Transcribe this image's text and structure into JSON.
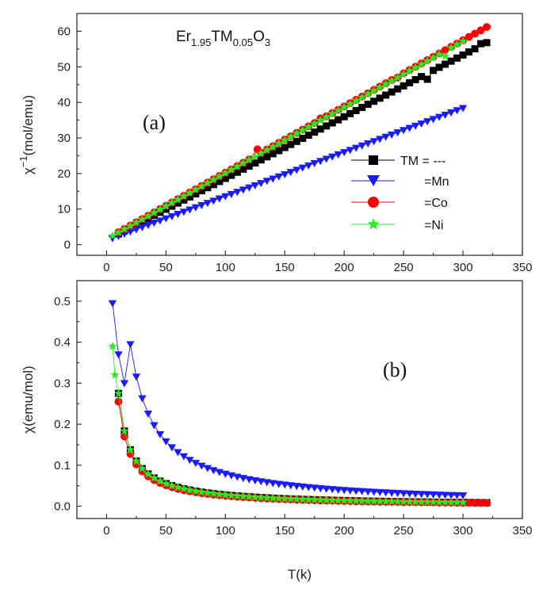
{
  "figure": {
    "compound": {
      "base": "Er",
      "sub1": "1.95",
      "mid": "TM",
      "sub2": "0.05",
      "end": "O",
      "sub3": "3"
    }
  },
  "colors": {
    "none": "#000000",
    "mn": "#1a1aff",
    "co": "#ff0000",
    "ni": "#22ee22"
  },
  "chart_data": [
    {
      "type": "scatter",
      "panel_label": "(a)",
      "xlabel": "",
      "ylabel": "χ−1(mol/emu)",
      "ylabel_parts": {
        "base": "χ",
        "sup": "−1",
        "rest": "(mol/emu)"
      },
      "xlim": [
        -25,
        350
      ],
      "ylim": [
        -3,
        65
      ],
      "x_ticks": [
        0,
        50,
        100,
        150,
        200,
        250,
        300,
        350
      ],
      "y_ticks": [
        0,
        10,
        20,
        30,
        40,
        50,
        60
      ],
      "legend_placement": "right",
      "grid": false,
      "series": [
        {
          "name": "TM = ---",
          "marker": "square",
          "color": "#000000",
          "x_start": 10,
          "x_end": 320,
          "x_step": 5,
          "y_at_start": 3.0,
          "y_at_end": 56.8,
          "outliers": [
            [
              270,
              46.5
            ],
            [
              315,
              56.5
            ],
            [
              320,
              56.8
            ]
          ]
        },
        {
          "name": "=Mn",
          "marker": "triangle-down",
          "color": "#1a1aff",
          "x_start": 5,
          "x_end": 300,
          "x_step": 5,
          "y_at_start": 1.8,
          "y_at_end": 38.4,
          "outliers": []
        },
        {
          "name": "=Co",
          "marker": "circle",
          "color": "#ff0000",
          "x_start": 10,
          "x_end": 320,
          "x_step": 5,
          "y_at_start": 3.5,
          "y_at_end": 61.2,
          "outliers": [
            [
              127,
              26.8
            ],
            [
              180,
              35.5
            ],
            [
              245,
              47.0
            ]
          ]
        },
        {
          "name": "=Ni",
          "marker": "star",
          "color": "#22ee22",
          "x_start": 5,
          "x_end": 300,
          "x_step": 5,
          "y_at_start": 2.5,
          "y_at_end": 57.2,
          "outliers": [
            [
              285,
              53.0
            ]
          ]
        }
      ]
    },
    {
      "type": "scatter",
      "panel_label": "(b)",
      "xlabel": "T(k)",
      "ylabel": "χ(emu/mol)",
      "xlim": [
        -25,
        350
      ],
      "ylim": [
        -0.03,
        0.55
      ],
      "x_ticks": [
        0,
        50,
        100,
        150,
        200,
        250,
        300,
        350
      ],
      "y_ticks": [
        0.0,
        0.1,
        0.2,
        0.3,
        0.4,
        0.5
      ],
      "y_tick_labels": [
        "0.0",
        "0.1",
        "0.2",
        "0.3",
        "0.4",
        "0.5"
      ],
      "grid": false,
      "series": [
        {
          "name": "TM = ---",
          "marker": "square",
          "color": "#000000",
          "x_start": 10,
          "x_end": 320,
          "x_step": 5,
          "curie_C": 2.75
        },
        {
          "name": "=Mn",
          "marker": "triangle-down",
          "color": "#1a1aff",
          "x_start": 5,
          "x_end": 300,
          "x_step": 5,
          "curie_C": 7.9,
          "first_points": [
            [
              5,
              0.495
            ],
            [
              10,
              0.37
            ],
            [
              15,
              0.3
            ]
          ]
        },
        {
          "name": "=Co",
          "marker": "circle",
          "color": "#ff0000",
          "x_start": 10,
          "x_end": 320,
          "x_step": 5,
          "curie_C": 2.55
        },
        {
          "name": "=Ni",
          "marker": "star",
          "color": "#22ee22",
          "x_start": 5,
          "x_end": 300,
          "x_step": 5,
          "curie_C": 2.75,
          "first_points": [
            [
              5,
              0.39
            ],
            [
              7,
              0.32
            ]
          ]
        }
      ]
    }
  ]
}
